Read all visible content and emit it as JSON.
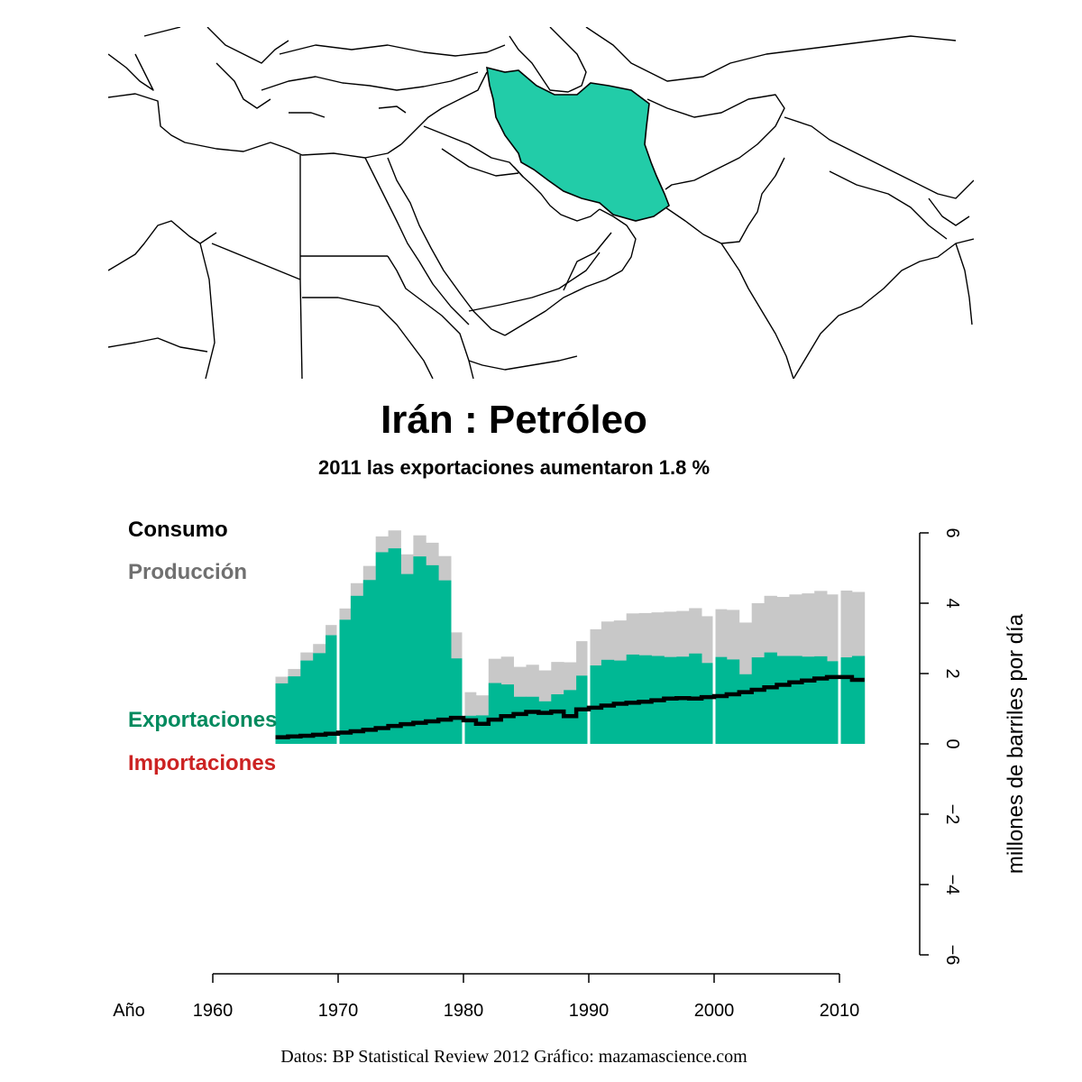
{
  "title": "Irán :  Petróleo",
  "subtitle": "2011 las exportaciones aumentaron 1.8 %",
  "legend": {
    "consumo": "Consumo",
    "produccion": "Producción",
    "exportaciones": "Exportaciones",
    "importaciones": "Importaciones"
  },
  "axis": {
    "year_label": "Año",
    "ylabel": "millones de barriles por día"
  },
  "credit": "Datos: BP Statistical Review 2012   Gráfico: mazamascience.com",
  "colors": {
    "produccion": "#c8c8c8",
    "exportaciones": "#00b894",
    "consumo": "#000000",
    "legend_produccion": "#707070",
    "legend_exportaciones": "#008a5e",
    "legend_importaciones": "#cc2222",
    "highlight_country": "#22cca8"
  },
  "map": {
    "highlighted_country": "Irán"
  },
  "chart_data": {
    "type": "bar",
    "years": [
      1965,
      1966,
      1967,
      1968,
      1969,
      1970,
      1971,
      1972,
      1973,
      1974,
      1975,
      1976,
      1977,
      1978,
      1979,
      1980,
      1981,
      1982,
      1983,
      1984,
      1985,
      1986,
      1987,
      1988,
      1989,
      1990,
      1991,
      1992,
      1993,
      1994,
      1995,
      1996,
      1997,
      1998,
      1999,
      2000,
      2001,
      2002,
      2003,
      2004,
      2005,
      2006,
      2007,
      2008,
      2009,
      2010,
      2011
    ],
    "series": [
      {
        "name": "Producción",
        "values": [
          1.91,
          2.13,
          2.6,
          2.84,
          3.38,
          3.85,
          4.57,
          5.06,
          5.9,
          6.07,
          5.39,
          5.93,
          5.72,
          5.34,
          3.17,
          1.47,
          1.38,
          2.42,
          2.48,
          2.19,
          2.25,
          2.09,
          2.33,
          2.32,
          2.92,
          3.26,
          3.48,
          3.51,
          3.71,
          3.72,
          3.74,
          3.76,
          3.78,
          3.86,
          3.63,
          3.83,
          3.81,
          3.45,
          4.0,
          4.21,
          4.18,
          4.25,
          4.28,
          4.35,
          4.25,
          4.36,
          4.32
        ]
      },
      {
        "name": "Consumo",
        "values": [
          0.19,
          0.21,
          0.23,
          0.26,
          0.29,
          0.32,
          0.36,
          0.4,
          0.45,
          0.51,
          0.56,
          0.6,
          0.64,
          0.69,
          0.74,
          0.67,
          0.57,
          0.69,
          0.79,
          0.85,
          0.91,
          0.88,
          0.92,
          0.79,
          0.98,
          1.03,
          1.09,
          1.14,
          1.17,
          1.2,
          1.24,
          1.29,
          1.3,
          1.29,
          1.33,
          1.36,
          1.41,
          1.47,
          1.54,
          1.61,
          1.68,
          1.75,
          1.8,
          1.86,
          1.9,
          1.9,
          1.82
        ]
      },
      {
        "name": "Exportaciones",
        "values": [
          1.72,
          1.92,
          2.37,
          2.58,
          3.09,
          3.53,
          4.21,
          4.66,
          5.45,
          5.56,
          4.83,
          5.33,
          5.08,
          4.65,
          2.43,
          0.8,
          0.81,
          1.73,
          1.69,
          1.34,
          1.34,
          1.21,
          1.41,
          1.53,
          1.94,
          2.23,
          2.39,
          2.37,
          2.54,
          2.52,
          2.5,
          2.47,
          2.48,
          2.57,
          2.3,
          2.47,
          2.4,
          1.98,
          2.46,
          2.6,
          2.5,
          2.5,
          2.48,
          2.49,
          2.35,
          2.46,
          2.5
        ]
      }
    ],
    "xlabel": "Año",
    "ylabel": "millones de barriles por día",
    "xlim": [
      1960,
      2012
    ],
    "ylim": [
      -6,
      6
    ],
    "xticks": [
      1960,
      1970,
      1980,
      1990,
      2000,
      2010
    ],
    "yticks": [
      -6,
      -4,
      -2,
      0,
      2,
      4,
      6
    ],
    "decade_separators": [
      1970,
      1980,
      1990,
      2000,
      2010
    ],
    "grid": false
  }
}
